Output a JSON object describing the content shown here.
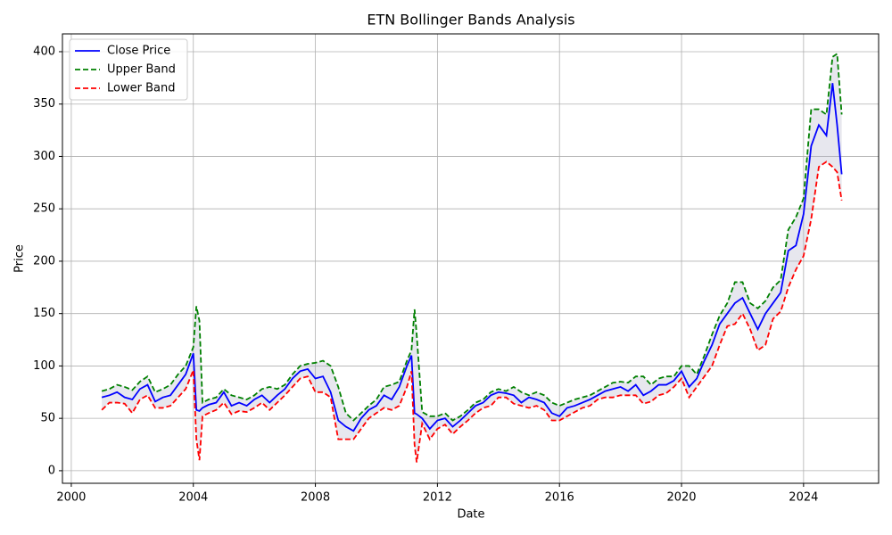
{
  "chart_data": {
    "type": "line",
    "title": "ETN Bollinger Bands Analysis",
    "x_label": "Date",
    "y_label": "Price",
    "x": [
      2001.0,
      2001.25,
      2001.5,
      2001.75,
      2002.0,
      2002.25,
      2002.5,
      2002.75,
      2003.0,
      2003.25,
      2003.5,
      2003.75,
      2004.0,
      2004.1,
      2004.2,
      2004.3,
      2004.5,
      2004.75,
      2005.0,
      2005.25,
      2005.5,
      2005.75,
      2006.0,
      2006.25,
      2006.5,
      2006.75,
      2007.0,
      2007.25,
      2007.5,
      2007.75,
      2008.0,
      2008.25,
      2008.5,
      2008.75,
      2009.0,
      2009.25,
      2009.5,
      2009.75,
      2010.0,
      2010.25,
      2010.5,
      2010.75,
      2011.0,
      2011.15,
      2011.25,
      2011.32,
      2011.5,
      2011.75,
      2012.0,
      2012.25,
      2012.5,
      2012.75,
      2013.0,
      2013.25,
      2013.5,
      2013.75,
      2014.0,
      2014.25,
      2014.5,
      2014.75,
      2015.0,
      2015.25,
      2015.5,
      2015.75,
      2016.0,
      2016.25,
      2016.5,
      2016.75,
      2017.0,
      2017.25,
      2017.5,
      2017.75,
      2018.0,
      2018.25,
      2018.5,
      2018.75,
      2019.0,
      2019.25,
      2019.5,
      2019.75,
      2020.0,
      2020.25,
      2020.5,
      2020.75,
      2021.0,
      2021.25,
      2021.5,
      2021.75,
      2022.0,
      2022.25,
      2022.5,
      2022.75,
      2023.0,
      2023.25,
      2023.5,
      2023.75,
      2024.0,
      2024.25,
      2024.5,
      2024.75,
      2024.95,
      2025.1,
      2025.25
    ],
    "series": [
      {
        "name": "Close Price",
        "color": "#0000ff",
        "dash": false,
        "values": [
          70,
          72,
          75,
          70,
          68,
          78,
          82,
          66,
          70,
          72,
          82,
          92,
          112,
          58,
          57,
          60,
          63,
          65,
          75,
          62,
          65,
          62,
          68,
          72,
          65,
          72,
          78,
          88,
          95,
          97,
          88,
          90,
          75,
          48,
          42,
          38,
          50,
          58,
          62,
          72,
          68,
          80,
          100,
          110,
          55,
          54,
          50,
          40,
          48,
          50,
          42,
          48,
          55,
          62,
          65,
          72,
          75,
          74,
          72,
          65,
          70,
          68,
          65,
          55,
          52,
          60,
          62,
          65,
          68,
          72,
          76,
          78,
          80,
          76,
          82,
          72,
          76,
          82,
          82,
          86,
          95,
          80,
          88,
          105,
          120,
          140,
          150,
          160,
          165,
          150,
          135,
          150,
          160,
          170,
          210,
          215,
          245,
          310,
          330,
          320,
          370,
          330,
          283
        ]
      },
      {
        "name": "Upper Band",
        "color": "#008000",
        "dash": true,
        "values": [
          76,
          78,
          82,
          80,
          77,
          85,
          90,
          75,
          78,
          82,
          92,
          100,
          118,
          157,
          143,
          65,
          68,
          70,
          78,
          72,
          70,
          68,
          72,
          78,
          80,
          78,
          82,
          92,
          100,
          102,
          103,
          105,
          100,
          80,
          55,
          48,
          55,
          62,
          68,
          80,
          82,
          85,
          105,
          115,
          154,
          130,
          56,
          52,
          52,
          55,
          48,
          52,
          58,
          65,
          68,
          75,
          78,
          76,
          80,
          75,
          72,
          75,
          72,
          65,
          62,
          65,
          68,
          70,
          72,
          76,
          80,
          84,
          85,
          84,
          90,
          90,
          82,
          88,
          90,
          90,
          100,
          100,
          92,
          110,
          130,
          148,
          160,
          180,
          180,
          160,
          155,
          162,
          175,
          182,
          230,
          242,
          260,
          345,
          345,
          340,
          395,
          398,
          340
        ]
      },
      {
        "name": "Lower Band",
        "color": "#ff0000",
        "dash": true,
        "values": [
          58,
          65,
          65,
          64,
          55,
          68,
          72,
          60,
          60,
          62,
          70,
          78,
          96,
          30,
          10,
          52,
          55,
          58,
          65,
          54,
          57,
          56,
          60,
          65,
          58,
          65,
          72,
          80,
          88,
          90,
          75,
          75,
          70,
          30,
          30,
          30,
          40,
          50,
          55,
          60,
          58,
          62,
          80,
          95,
          25,
          8,
          45,
          30,
          40,
          44,
          35,
          42,
          48,
          55,
          60,
          62,
          70,
          70,
          64,
          62,
          60,
          62,
          58,
          48,
          48,
          52,
          56,
          60,
          62,
          68,
          70,
          70,
          72,
          72,
          72,
          64,
          66,
          72,
          74,
          80,
          88,
          70,
          80,
          90,
          100,
          120,
          138,
          140,
          150,
          135,
          115,
          120,
          145,
          152,
          175,
          192,
          205,
          240,
          290,
          295,
          290,
          285,
          258
        ]
      }
    ],
    "fill_between": true,
    "xlim": [
      1999.71,
      2026.46
    ],
    "ylim": [
      -12,
      417
    ],
    "xticks": [
      2000,
      2004,
      2008,
      2012,
      2016,
      2020,
      2024
    ],
    "yticks": [
      0,
      50,
      100,
      150,
      200,
      250,
      300,
      350,
      400
    ],
    "grid": true,
    "legend": "upper-left"
  }
}
